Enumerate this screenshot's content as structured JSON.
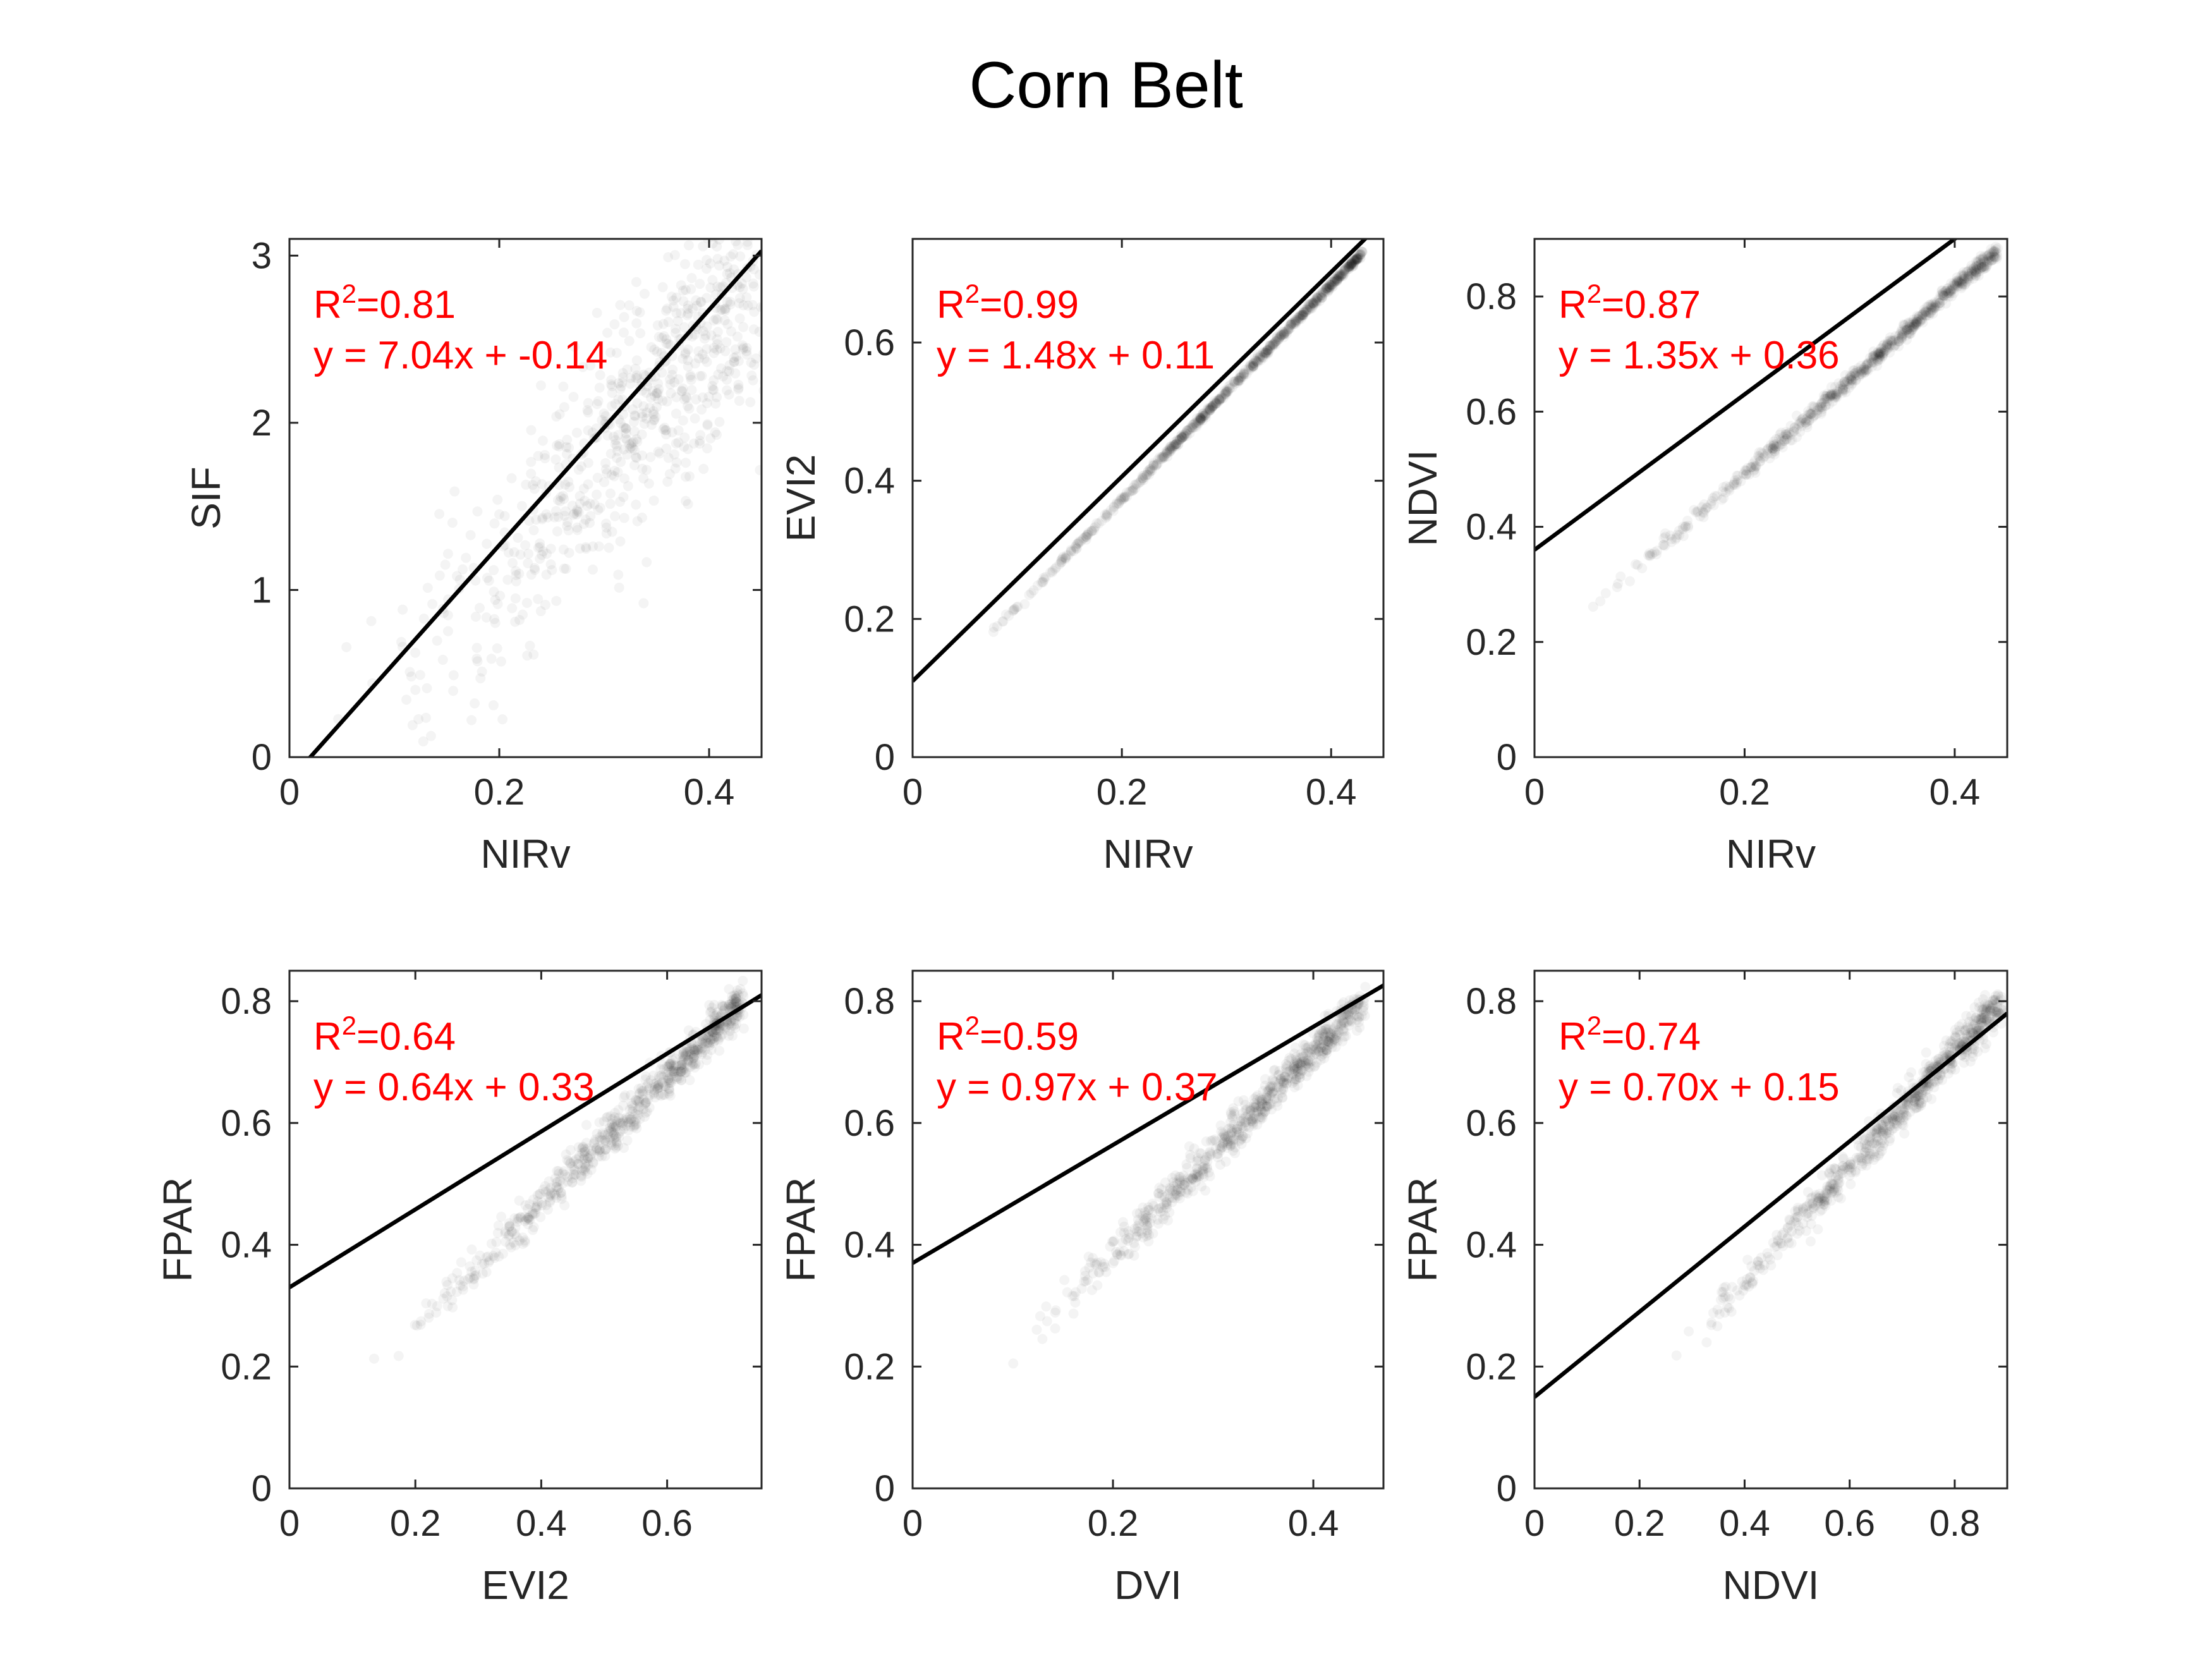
{
  "figure": {
    "title": "Corn Belt"
  },
  "chart_data": [
    {
      "type": "scatter",
      "panel": "top-left",
      "xlabel": "NIRv",
      "ylabel": "SIF",
      "xlim": [
        0,
        0.45
      ],
      "ylim": [
        0,
        3.1
      ],
      "xticks": [
        0,
        0.2,
        0.4
      ],
      "yticks": [
        0,
        1,
        2,
        3
      ],
      "xtick_labels": [
        "0",
        "0.2",
        "0.4"
      ],
      "ytick_labels": [
        "0",
        "1",
        "2",
        "3"
      ],
      "r2_label": "0.81",
      "r2_prefix": "R",
      "r2_sup": "2",
      "r2_eq": "=",
      "equation": "y = 7.04x + -0.14",
      "fit": {
        "slope": 7.04,
        "intercept": -0.14
      },
      "scatter_trend": {
        "from": [
          0.06,
          0.08
        ],
        "to": [
          0.43,
          2.75
        ],
        "center": [
          0.35,
          2.2
        ],
        "spread": 0.3
      }
    },
    {
      "type": "scatter",
      "panel": "top-middle",
      "xlabel": "NIRv",
      "ylabel": "EVI2",
      "xlim": [
        0,
        0.45
      ],
      "ylim": [
        0,
        0.75
      ],
      "xticks": [
        0,
        0.2,
        0.4
      ],
      "yticks": [
        0,
        0.2,
        0.4,
        0.6
      ],
      "xtick_labels": [
        "0",
        "0.2",
        "0.4"
      ],
      "ytick_labels": [
        "0",
        "0.2",
        "0.4",
        "0.6"
      ],
      "r2_label": "0.99",
      "r2_prefix": "R",
      "r2_sup": "2",
      "r2_eq": "=",
      "equation": "y = 1.48x + 0.11",
      "fit": {
        "slope": 1.48,
        "intercept": 0.11
      },
      "scatter_trend": {
        "from": [
          0.05,
          0.14
        ],
        "to": [
          0.43,
          0.73
        ],
        "center": [
          0.3,
          0.55
        ],
        "spread": 0.008
      }
    },
    {
      "type": "scatter",
      "panel": "top-right",
      "xlabel": "NIRv",
      "ylabel": "NDVI",
      "xlim": [
        0,
        0.45
      ],
      "ylim": [
        0,
        0.9
      ],
      "xticks": [
        0,
        0.2,
        0.4
      ],
      "yticks": [
        0,
        0.2,
        0.4,
        0.6,
        0.8
      ],
      "xtick_labels": [
        "0",
        "0.2",
        "0.4"
      ],
      "ytick_labels": [
        "0",
        "0.2",
        "0.4",
        "0.6",
        "0.8"
      ],
      "r2_label": "0.87",
      "r2_prefix": "R",
      "r2_sup": "2",
      "r2_eq": "=",
      "equation": "y = 1.35x + 0.36",
      "fit": {
        "slope": 1.35,
        "intercept": 0.36
      },
      "scatter_trend": {
        "from": [
          0.05,
          0.25
        ],
        "to": [
          0.44,
          0.88
        ],
        "center": [
          0.33,
          0.8
        ],
        "spread": 0.02
      }
    },
    {
      "type": "scatter",
      "panel": "bottom-left",
      "xlabel": "EVI2",
      "ylabel": "FPAR",
      "xlim": [
        0,
        0.75
      ],
      "ylim": [
        0,
        0.85
      ],
      "xticks": [
        0,
        0.2,
        0.4,
        0.6
      ],
      "yticks": [
        0,
        0.2,
        0.4,
        0.6,
        0.8
      ],
      "xtick_labels": [
        "0",
        "0.2",
        "0.4",
        "0.6"
      ],
      "ytick_labels": [
        "0",
        "0.2",
        "0.4",
        "0.6",
        "0.8"
      ],
      "r2_label": "0.64",
      "r2_prefix": "R",
      "r2_sup": "2",
      "r2_eq": "=",
      "equation": "y = 0.64x + 0.33",
      "fit": {
        "slope": 0.64,
        "intercept": 0.33
      },
      "scatter_trend": {
        "from": [
          0.14,
          0.2
        ],
        "to": [
          0.72,
          0.8
        ],
        "center": [
          0.63,
          0.73
        ],
        "spread": 0.05
      }
    },
    {
      "type": "scatter",
      "panel": "bottom-middle",
      "xlabel": "DVI",
      "ylabel": "FPAR",
      "xlim": [
        0,
        0.47
      ],
      "ylim": [
        0,
        0.85
      ],
      "xticks": [
        0,
        0.2,
        0.4
      ],
      "yticks": [
        0,
        0.2,
        0.4,
        0.6,
        0.8
      ],
      "xtick_labels": [
        "0",
        "0.2",
        "0.4"
      ],
      "ytick_labels": [
        "0",
        "0.2",
        "0.4",
        "0.6",
        "0.8"
      ],
      "r2_label": "0.59",
      "r2_prefix": "R",
      "r2_sup": "2",
      "r2_eq": "=",
      "equation": "y = 0.97x + 0.37",
      "fit": {
        "slope": 0.97,
        "intercept": 0.37
      },
      "scatter_trend": {
        "from": [
          0.09,
          0.2
        ],
        "to": [
          0.45,
          0.8
        ],
        "center": [
          0.38,
          0.72
        ],
        "spread": 0.05
      }
    },
    {
      "type": "scatter",
      "panel": "bottom-right",
      "xlabel": "NDVI",
      "ylabel": "FPAR",
      "xlim": [
        0,
        0.9
      ],
      "ylim": [
        0,
        0.85
      ],
      "xticks": [
        0,
        0.2,
        0.4,
        0.6,
        0.8
      ],
      "yticks": [
        0,
        0.2,
        0.4,
        0.6,
        0.8
      ],
      "xtick_labels": [
        "0",
        "0.2",
        "0.4",
        "0.6",
        "0.8"
      ],
      "ytick_labels": [
        "0",
        "0.2",
        "0.4",
        "0.6",
        "0.8"
      ],
      "r2_label": "0.74",
      "r2_prefix": "R",
      "r2_sup": "2",
      "r2_eq": "=",
      "equation": "y = 0.70x + 0.15",
      "fit": {
        "slope": 0.7,
        "intercept": 0.15
      },
      "scatter_trend": {
        "from": [
          0.25,
          0.2
        ],
        "to": [
          0.89,
          0.8
        ],
        "center": [
          0.83,
          0.72
        ],
        "spread": 0.05
      }
    }
  ]
}
